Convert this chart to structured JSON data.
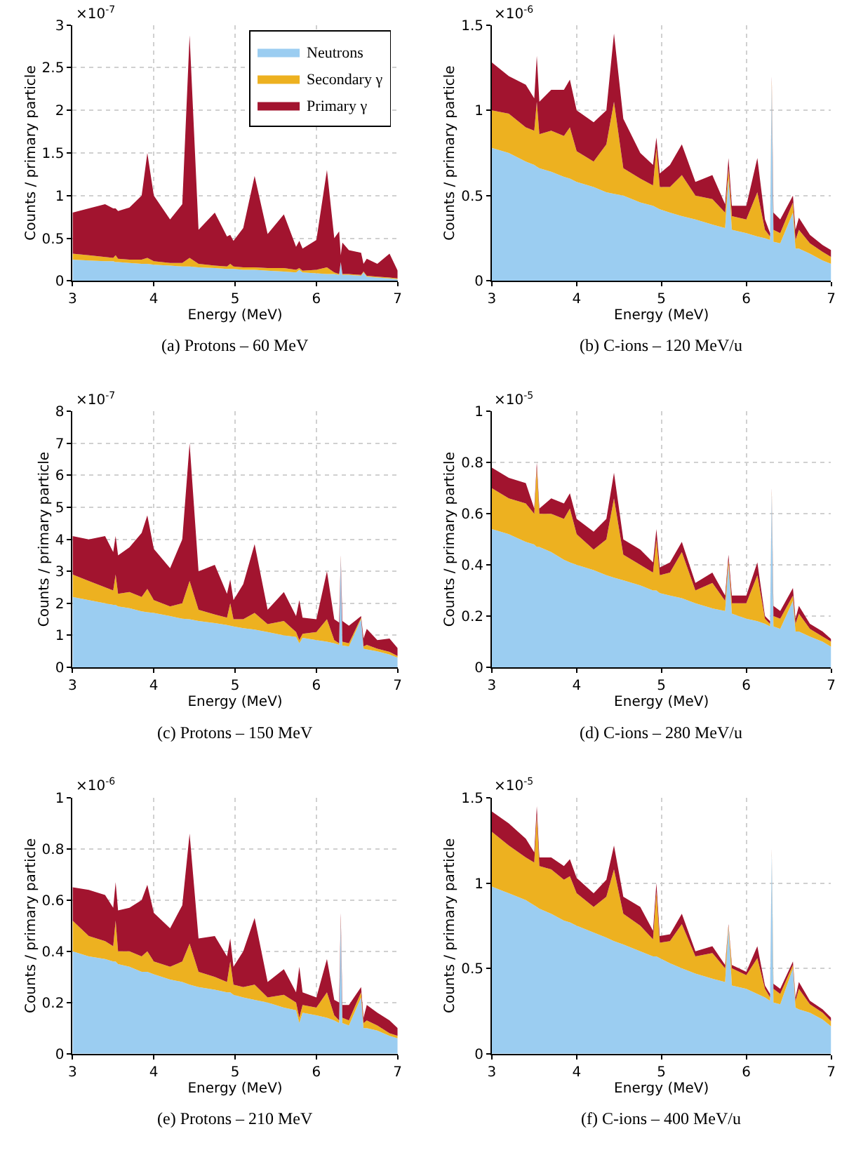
{
  "chart_data": [
    {
      "type": "area",
      "stacked": true,
      "xlabel": "Energy (MeV)",
      "ylabel": "Counts / primary particle",
      "grid": true,
      "legend": "top right",
      "annotations": [
        "×10$^{-7}$",
        "(a) Protons – 60 MeV"
      ],
      "x": [
        3.0,
        3.2,
        3.4,
        3.5,
        3.53,
        3.56,
        3.7,
        3.85,
        3.92,
        4.0,
        4.2,
        4.35,
        4.44,
        4.55,
        4.75,
        4.9,
        4.94,
        4.98,
        5.1,
        5.24,
        5.4,
        5.6,
        5.75,
        5.79,
        5.83,
        6.0,
        6.13,
        6.22,
        6.28,
        6.3,
        6.32,
        6.4,
        6.55,
        6.58,
        6.62,
        6.75,
        6.9,
        7.0
      ],
      "xlim": [
        3,
        7
      ],
      "xticks": [
        3,
        4,
        5,
        6,
        7
      ],
      "ylim": [
        0,
        3
      ],
      "yticks": [
        0,
        0.5,
        1,
        1.5,
        2,
        2.5,
        3
      ],
      "series": [
        {
          "name": "Neutrons",
          "color": "#9bcdf1",
          "values": [
            0.25,
            0.24,
            0.23,
            0.23,
            0.22,
            0.22,
            0.21,
            0.2,
            0.2,
            0.19,
            0.18,
            0.17,
            0.17,
            0.16,
            0.15,
            0.14,
            0.14,
            0.14,
            0.13,
            0.13,
            0.12,
            0.11,
            0.1,
            0.13,
            0.1,
            0.09,
            0.08,
            0.08,
            0.07,
            0.22,
            0.07,
            0.07,
            0.06,
            0.1,
            0.05,
            0.04,
            0.03,
            0.02
          ]
        },
        {
          "name": "Secondary γ",
          "color": "#edb120",
          "values": [
            0.07,
            0.06,
            0.05,
            0.04,
            0.08,
            0.04,
            0.04,
            0.05,
            0.07,
            0.04,
            0.03,
            0.04,
            0.1,
            0.04,
            0.03,
            0.03,
            0.06,
            0.03,
            0.03,
            0.03,
            0.03,
            0.04,
            0.03,
            0.02,
            0.02,
            0.04,
            0.08,
            0.02,
            0.01,
            0.0,
            0.01,
            0.01,
            0.01,
            0.01,
            0.01,
            0.01,
            0.01,
            0.01
          ]
        },
        {
          "name": "Primary γ",
          "color": "#a2142f",
          "values": [
            0.48,
            0.55,
            0.62,
            0.58,
            0.55,
            0.56,
            0.61,
            0.75,
            1.23,
            0.77,
            0.51,
            0.69,
            2.61,
            0.4,
            0.62,
            0.35,
            0.34,
            0.3,
            0.46,
            1.07,
            0.4,
            0.63,
            0.27,
            0.32,
            0.26,
            0.35,
            1.14,
            0.4,
            0.5,
            0.08,
            0.37,
            0.28,
            0.26,
            0.09,
            0.2,
            0.15,
            0.28,
            0.09
          ]
        }
      ]
    },
    {
      "type": "area",
      "stacked": true,
      "xlabel": "Energy (MeV)",
      "ylabel": "Counts / primary particle",
      "grid": true,
      "annotations": [
        "×10$^{-6}$",
        "(b) C-ions – 120 MeV/u"
      ],
      "x": [
        3.0,
        3.2,
        3.4,
        3.5,
        3.53,
        3.56,
        3.7,
        3.85,
        3.92,
        4.0,
        4.2,
        4.35,
        4.44,
        4.55,
        4.75,
        4.9,
        4.94,
        4.98,
        5.1,
        5.24,
        5.4,
        5.6,
        5.75,
        5.79,
        5.83,
        6.0,
        6.13,
        6.22,
        6.28,
        6.3,
        6.32,
        6.4,
        6.55,
        6.58,
        6.62,
        6.75,
        6.9,
        7.0
      ],
      "xlim": [
        3,
        7
      ],
      "xticks": [
        3,
        4,
        5,
        6,
        7
      ],
      "ylim": [
        0,
        1.5
      ],
      "yticks": [
        0,
        0.5,
        1,
        1.5
      ],
      "series": [
        {
          "color": "#9bcdf1",
          "values": [
            0.78,
            0.75,
            0.7,
            0.68,
            0.67,
            0.66,
            0.64,
            0.61,
            0.6,
            0.58,
            0.55,
            0.52,
            0.51,
            0.5,
            0.46,
            0.44,
            0.43,
            0.42,
            0.4,
            0.38,
            0.36,
            0.33,
            0.31,
            0.6,
            0.3,
            0.28,
            0.26,
            0.25,
            0.24,
            1.15,
            0.23,
            0.22,
            0.4,
            0.19,
            0.19,
            0.16,
            0.12,
            0.1
          ]
        },
        {
          "color": "#edb120",
          "values": [
            0.22,
            0.23,
            0.2,
            0.2,
            0.38,
            0.2,
            0.24,
            0.24,
            0.3,
            0.18,
            0.15,
            0.28,
            0.54,
            0.16,
            0.14,
            0.12,
            0.35,
            0.13,
            0.15,
            0.24,
            0.14,
            0.15,
            0.09,
            0.06,
            0.08,
            0.08,
            0.26,
            0.05,
            0.02,
            0.03,
            0.07,
            0.06,
            0.06,
            0.05,
            0.11,
            0.06,
            0.05,
            0.04
          ]
        },
        {
          "color": "#a2142f",
          "values": [
            0.28,
            0.22,
            0.25,
            0.19,
            0.27,
            0.19,
            0.24,
            0.27,
            0.28,
            0.24,
            0.23,
            0.2,
            0.4,
            0.29,
            0.15,
            0.12,
            0.06,
            0.08,
            0.13,
            0.18,
            0.08,
            0.14,
            0.05,
            0.06,
            0.06,
            0.08,
            0.2,
            0.06,
            0.02,
            0.02,
            0.1,
            0.08,
            0.04,
            0.06,
            0.07,
            0.05,
            0.04,
            0.04
          ]
        }
      ]
    },
    {
      "type": "area",
      "stacked": true,
      "xlabel": "Energy (MeV)",
      "ylabel": "Counts / primary particle",
      "grid": true,
      "annotations": [
        "×10$^{-7}$",
        "(c) Protons – 150 MeV"
      ],
      "x": [
        3.0,
        3.2,
        3.4,
        3.5,
        3.53,
        3.56,
        3.7,
        3.85,
        3.92,
        4.0,
        4.2,
        4.35,
        4.44,
        4.55,
        4.75,
        4.9,
        4.94,
        4.98,
        5.1,
        5.24,
        5.4,
        5.6,
        5.75,
        5.79,
        5.83,
        6.0,
        6.13,
        6.22,
        6.28,
        6.3,
        6.32,
        6.4,
        6.55,
        6.58,
        6.62,
        6.75,
        6.9,
        7.0
      ],
      "xlim": [
        3,
        7
      ],
      "xticks": [
        3,
        4,
        5,
        6,
        7
      ],
      "ylim": [
        0,
        8
      ],
      "yticks": [
        0,
        1,
        2,
        3,
        4,
        5,
        6,
        7,
        8
      ],
      "series": [
        {
          "color": "#9bcdf1",
          "values": [
            2.2,
            2.1,
            2.0,
            1.95,
            1.95,
            1.9,
            1.85,
            1.75,
            1.72,
            1.7,
            1.6,
            1.52,
            1.5,
            1.45,
            1.38,
            1.32,
            1.3,
            1.28,
            1.22,
            1.18,
            1.1,
            1.0,
            0.95,
            0.75,
            0.92,
            0.85,
            0.8,
            0.75,
            0.7,
            3.4,
            0.68,
            0.65,
            1.5,
            0.58,
            0.56,
            0.5,
            0.4,
            0.3
          ]
        },
        {
          "color": "#edb120",
          "values": [
            0.7,
            0.6,
            0.5,
            0.45,
            0.95,
            0.4,
            0.5,
            0.45,
            0.73,
            0.4,
            0.3,
            0.48,
            1.2,
            0.35,
            0.27,
            0.23,
            0.7,
            0.22,
            0.28,
            0.52,
            0.25,
            0.45,
            0.15,
            0.1,
            0.13,
            0.25,
            0.7,
            0.1,
            0.05,
            0.05,
            0.12,
            0.1,
            0.05,
            0.07,
            0.14,
            0.08,
            0.08,
            0.05
          ]
        },
        {
          "color": "#a2142f",
          "values": [
            1.2,
            1.3,
            1.6,
            1.2,
            1.2,
            1.2,
            1.4,
            2.0,
            2.3,
            1.6,
            1.2,
            2.0,
            4.3,
            1.2,
            1.55,
            0.75,
            0.75,
            0.6,
            1.1,
            2.15,
            0.45,
            0.9,
            0.5,
            1.25,
            0.5,
            0.4,
            1.5,
            0.65,
            0.65,
            0.05,
            0.65,
            0.55,
            0.05,
            0.25,
            0.5,
            0.27,
            0.42,
            0.25
          ]
        }
      ]
    },
    {
      "type": "area",
      "stacked": true,
      "xlabel": "Energy (MeV)",
      "ylabel": "Counts / primary particle",
      "grid": true,
      "annotations": [
        "×10$^{-5}$",
        "(d) C-ions – 280 MeV/u"
      ],
      "x": [
        3.0,
        3.2,
        3.4,
        3.5,
        3.53,
        3.56,
        3.7,
        3.85,
        3.92,
        4.0,
        4.2,
        4.35,
        4.44,
        4.55,
        4.75,
        4.9,
        4.94,
        4.98,
        5.1,
        5.24,
        5.4,
        5.6,
        5.75,
        5.79,
        5.83,
        6.0,
        6.13,
        6.22,
        6.28,
        6.3,
        6.32,
        6.4,
        6.55,
        6.58,
        6.62,
        6.75,
        6.9,
        7.0
      ],
      "xlim": [
        3,
        7
      ],
      "xticks": [
        3,
        4,
        5,
        6,
        7
      ],
      "ylim": [
        0,
        1
      ],
      "yticks": [
        0,
        0.2,
        0.4,
        0.6,
        0.8,
        1
      ],
      "series": [
        {
          "color": "#9bcdf1",
          "values": [
            0.54,
            0.52,
            0.49,
            0.48,
            0.47,
            0.47,
            0.45,
            0.42,
            0.41,
            0.4,
            0.38,
            0.36,
            0.35,
            0.34,
            0.32,
            0.3,
            0.3,
            0.29,
            0.28,
            0.27,
            0.25,
            0.23,
            0.22,
            0.4,
            0.21,
            0.19,
            0.18,
            0.17,
            0.16,
            0.68,
            0.16,
            0.15,
            0.26,
            0.14,
            0.14,
            0.12,
            0.1,
            0.08
          ]
        },
        {
          "color": "#edb120",
          "values": [
            0.16,
            0.14,
            0.15,
            0.12,
            0.31,
            0.13,
            0.15,
            0.16,
            0.21,
            0.12,
            0.08,
            0.14,
            0.31,
            0.1,
            0.08,
            0.07,
            0.2,
            0.07,
            0.09,
            0.18,
            0.05,
            0.1,
            0.04,
            0.02,
            0.04,
            0.06,
            0.18,
            0.02,
            0.01,
            0.01,
            0.04,
            0.04,
            0.02,
            0.03,
            0.07,
            0.03,
            0.02,
            0.02
          ]
        },
        {
          "color": "#a2142f",
          "values": [
            0.08,
            0.08,
            0.08,
            0.02,
            0.02,
            0.02,
            0.06,
            0.06,
            0.06,
            0.06,
            0.07,
            0.08,
            0.1,
            0.06,
            0.06,
            0.04,
            0.04,
            0.03,
            0.04,
            0.04,
            0.03,
            0.04,
            0.02,
            0.02,
            0.03,
            0.03,
            0.05,
            0.01,
            0.01,
            0.01,
            0.04,
            0.03,
            0.03,
            0.02,
            0.03,
            0.02,
            0.02,
            0.01
          ]
        }
      ]
    },
    {
      "type": "area",
      "stacked": true,
      "xlabel": "Energy (MeV)",
      "ylabel": "Counts / primary particle",
      "grid": true,
      "annotations": [
        "×10$^{-6}$",
        "(e) Protons – 210 MeV"
      ],
      "x": [
        3.0,
        3.2,
        3.4,
        3.5,
        3.53,
        3.56,
        3.7,
        3.85,
        3.92,
        4.0,
        4.2,
        4.35,
        4.44,
        4.55,
        4.75,
        4.9,
        4.94,
        4.98,
        5.1,
        5.24,
        5.4,
        5.6,
        5.75,
        5.79,
        5.83,
        6.0,
        6.13,
        6.22,
        6.28,
        6.3,
        6.32,
        6.4,
        6.55,
        6.58,
        6.62,
        6.75,
        6.9,
        7.0
      ],
      "xlim": [
        3,
        7
      ],
      "xticks": [
        3,
        4,
        5,
        6,
        7
      ],
      "ylim": [
        0,
        1
      ],
      "yticks": [
        0,
        0.2,
        0.4,
        0.6,
        0.8,
        1
      ],
      "series": [
        {
          "color": "#9bcdf1",
          "values": [
            0.4,
            0.38,
            0.37,
            0.36,
            0.36,
            0.35,
            0.34,
            0.32,
            0.32,
            0.31,
            0.29,
            0.28,
            0.27,
            0.26,
            0.25,
            0.24,
            0.24,
            0.23,
            0.22,
            0.21,
            0.2,
            0.18,
            0.17,
            0.12,
            0.16,
            0.15,
            0.14,
            0.13,
            0.12,
            0.52,
            0.12,
            0.11,
            0.22,
            0.1,
            0.1,
            0.09,
            0.07,
            0.06
          ]
        },
        {
          "color": "#edb120",
          "values": [
            0.12,
            0.08,
            0.07,
            0.06,
            0.16,
            0.05,
            0.06,
            0.06,
            0.08,
            0.05,
            0.05,
            0.08,
            0.16,
            0.06,
            0.05,
            0.04,
            0.12,
            0.04,
            0.04,
            0.06,
            0.02,
            0.05,
            0.03,
            0.02,
            0.03,
            0.03,
            0.1,
            0.02,
            0.01,
            0.01,
            0.02,
            0.02,
            0.02,
            0.02,
            0.03,
            0.02,
            0.01,
            0.01
          ]
        },
        {
          "color": "#a2142f",
          "values": [
            0.13,
            0.18,
            0.18,
            0.15,
            0.15,
            0.16,
            0.17,
            0.22,
            0.26,
            0.19,
            0.15,
            0.22,
            0.43,
            0.13,
            0.16,
            0.1,
            0.09,
            0.07,
            0.14,
            0.26,
            0.06,
            0.1,
            0.04,
            0.2,
            0.05,
            0.04,
            0.13,
            0.06,
            0.07,
            0.02,
            0.05,
            0.06,
            0.02,
            0.02,
            0.06,
            0.05,
            0.05,
            0.03
          ]
        }
      ]
    },
    {
      "type": "area",
      "stacked": true,
      "xlabel": "Energy (MeV)",
      "ylabel": "Counts / primary particle",
      "grid": true,
      "annotations": [
        "×10$^{-5}$",
        "(f) C-ions – 400 MeV/u"
      ],
      "x": [
        3.0,
        3.2,
        3.4,
        3.5,
        3.53,
        3.56,
        3.7,
        3.85,
        3.92,
        4.0,
        4.2,
        4.35,
        4.44,
        4.55,
        4.75,
        4.9,
        4.94,
        4.98,
        5.1,
        5.24,
        5.4,
        5.6,
        5.75,
        5.79,
        5.83,
        6.0,
        6.13,
        6.22,
        6.28,
        6.3,
        6.32,
        6.4,
        6.55,
        6.58,
        6.62,
        6.75,
        6.9,
        7.0
      ],
      "xlim": [
        3,
        7
      ],
      "xticks": [
        3,
        4,
        5,
        6,
        7
      ],
      "ylim": [
        0,
        1.5
      ],
      "yticks": [
        0,
        0.5,
        1,
        1.5
      ],
      "series": [
        {
          "color": "#9bcdf1",
          "values": [
            0.98,
            0.94,
            0.9,
            0.87,
            0.86,
            0.85,
            0.82,
            0.78,
            0.77,
            0.75,
            0.71,
            0.68,
            0.66,
            0.64,
            0.6,
            0.57,
            0.57,
            0.56,
            0.53,
            0.5,
            0.47,
            0.44,
            0.42,
            0.74,
            0.4,
            0.38,
            0.35,
            0.33,
            0.31,
            1.18,
            0.3,
            0.29,
            0.5,
            0.27,
            0.26,
            0.24,
            0.2,
            0.16
          ]
        },
        {
          "color": "#edb120",
          "values": [
            0.32,
            0.28,
            0.25,
            0.25,
            0.54,
            0.25,
            0.26,
            0.24,
            0.27,
            0.19,
            0.15,
            0.24,
            0.42,
            0.18,
            0.15,
            0.1,
            0.38,
            0.09,
            0.13,
            0.26,
            0.1,
            0.15,
            0.08,
            0.01,
            0.1,
            0.08,
            0.21,
            0.05,
            0.02,
            0.01,
            0.08,
            0.06,
            0.02,
            0.04,
            0.12,
            0.05,
            0.04,
            0.03
          ]
        },
        {
          "color": "#a2142f",
          "values": [
            0.12,
            0.13,
            0.11,
            0.06,
            0.05,
            0.05,
            0.07,
            0.08,
            0.1,
            0.09,
            0.08,
            0.1,
            0.14,
            0.1,
            0.11,
            0.05,
            0.05,
            0.04,
            0.04,
            0.06,
            0.03,
            0.04,
            0.02,
            0.01,
            0.02,
            0.02,
            0.07,
            0.02,
            0.02,
            0.01,
            0.03,
            0.03,
            0.02,
            0.02,
            0.04,
            0.02,
            0.02,
            0.02
          ]
        }
      ]
    }
  ]
}
